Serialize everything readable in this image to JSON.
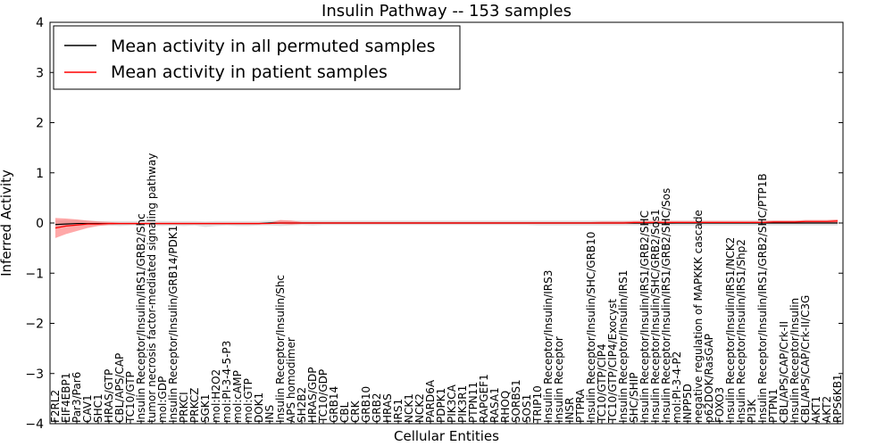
{
  "chart_data": {
    "type": "line",
    "title": "Insulin Pathway -- 153 samples",
    "xlabel": "Cellular Entities",
    "ylabel": "Inferred Activity",
    "ylim": [
      -4,
      4
    ],
    "yticks": [
      -4,
      -3,
      -2,
      -1,
      0,
      1,
      2,
      3,
      4
    ],
    "ytick_labels": [
      "−4",
      "−3",
      "−2",
      "−1",
      "0",
      "1",
      "2",
      "3",
      "4"
    ],
    "legend_position": "top-left",
    "categories": [
      "F2RL2",
      "EIF4EBP1",
      "Par3/Par6",
      "CAV1",
      "SHC1",
      "HRAS/GTP",
      "CBL/APS/CAP",
      "TC10/GTP",
      "Insulin Receptor/Insulin/IRS1/GRB2/Shc",
      "tumor necrosis factor-mediated signaling pathway",
      "mol:GDP",
      "Insulin Receptor/Insulin/GRB14/PDK1",
      "PRKCI",
      "PRKCZ",
      "SGK1",
      "mol:H2O2",
      "mol:PI-3-4-5-P3",
      "mol:cAMP",
      "mol:GTP",
      "DOK1",
      "INS",
      "Insulin Receptor/Insulin/Shc",
      "APS homodimer",
      "SH2B2",
      "HRAS/GDP",
      "TC10/GDP",
      "GRB14",
      "CBL",
      "CRK",
      "GRB10",
      "GRB2",
      "HRAS",
      "IRS1",
      "NCK1",
      "NCK2",
      "PARD6A",
      "PDPK1",
      "PIK3CA",
      "PIK3R1",
      "PTPN11",
      "RAPGEF1",
      "RASA1",
      "RHOQ",
      "SORBS1",
      "SOS1",
      "TRIP10",
      "Insulin Receptor/Insulin/IRS3",
      "Insulin Receptor",
      "INSR",
      "PTPRA",
      "Insulin Receptor/Insulin/SHC/GRB10",
      "TC10/GTP/CIP4",
      "TC10/GTP/CIP4/Exocyst",
      "Insulin Receptor/Insulin/IRS1",
      "SHC/SHIP",
      "Insulin Receptor/Insulin/IRS1/GRB2/SHC",
      "Insulin Receptor/Insulin/SHC/GRB2/Sos1",
      "Insulin Receptor/Insulin/IRS1/GRB2/SHC/Sos",
      "mol:PI-3-4-P2",
      "INPP5D",
      "negative regulation of MAPKKK cascade",
      "p62DOK/RasGAP",
      "FOXO3",
      "Insulin Receptor/Insulin/IRS1/NCK2",
      "Insulin Receptor/Insulin/IRS1/Shp2",
      "PI3K",
      "Insulin Receptor/Insulin/IRS1/GRB2/SHC/PTP1B",
      "PTPN1",
      "CBL/APS/CAP/Crk-II",
      "Insulin Receptor/Insulin",
      "CBL/APS/CAP/Crk-II/C3G",
      "AKT1",
      "AKT2",
      "RPS6KB1"
    ],
    "series": [
      {
        "name": "Mean activity in all permuted samples",
        "color": "#000000",
        "values": [
          -0.03,
          -0.02,
          -0.01,
          -0.01,
          -0.01,
          -0.01,
          -0.01,
          -0.01,
          -0.01,
          -0.01,
          -0.01,
          -0.01,
          -0.01,
          -0.01,
          -0.01,
          -0.01,
          -0.01,
          -0.01,
          -0.01,
          -0.01,
          0,
          0,
          0,
          0,
          0,
          0,
          0,
          0,
          0,
          0,
          0,
          0,
          0,
          0,
          0,
          0,
          0,
          0,
          0,
          0,
          0,
          0,
          0,
          0,
          0,
          0,
          0,
          0,
          0,
          0,
          0,
          0,
          0,
          0,
          0,
          0,
          0,
          0,
          0,
          0,
          0,
          0,
          0,
          0,
          0,
          0,
          0,
          0,
          0,
          0,
          0,
          0,
          0,
          0
        ],
        "band_low": [
          -0.08,
          -0.07,
          -0.06,
          -0.05,
          -0.05,
          -0.05,
          -0.06,
          -0.05,
          -0.04,
          -0.05,
          -0.06,
          -0.05,
          -0.06,
          -0.05,
          -0.08,
          -0.06,
          -0.05,
          -0.06,
          -0.06,
          -0.05,
          -0.05,
          -0.06,
          -0.05,
          -0.04,
          -0.05,
          -0.04,
          -0.04,
          -0.04,
          -0.04,
          -0.04,
          -0.04,
          -0.04,
          -0.04,
          -0.04,
          -0.04,
          -0.04,
          -0.04,
          -0.04,
          -0.04,
          -0.04,
          -0.04,
          -0.04,
          -0.04,
          -0.04,
          -0.04,
          -0.05,
          -0.05,
          -0.05,
          -0.05,
          -0.05,
          -0.05,
          -0.05,
          -0.05,
          -0.05,
          -0.05,
          -0.05,
          -0.05,
          -0.05,
          -0.05,
          -0.05,
          -0.05,
          -0.05,
          -0.05,
          -0.05,
          -0.05,
          -0.05,
          -0.05,
          -0.05,
          -0.05,
          -0.05,
          -0.05,
          -0.05,
          -0.05,
          -0.05
        ],
        "band_high": [
          0.05,
          0.06,
          0.06,
          0.05,
          0.04,
          0.04,
          0.04,
          0.04,
          0.04,
          0.04,
          0.04,
          0.04,
          0.04,
          0.04,
          0.03,
          0.04,
          0.04,
          0.04,
          0.04,
          0.04,
          0.05,
          0.05,
          0.05,
          0.05,
          0.05,
          0.05,
          0.05,
          0.05,
          0.05,
          0.05,
          0.05,
          0.05,
          0.05,
          0.05,
          0.05,
          0.05,
          0.05,
          0.05,
          0.05,
          0.05,
          0.05,
          0.05,
          0.05,
          0.05,
          0.05,
          0.05,
          0.05,
          0.05,
          0.05,
          0.05,
          0.05,
          0.05,
          0.05,
          0.05,
          0.05,
          0.05,
          0.05,
          0.05,
          0.05,
          0.05,
          0.05,
          0.05,
          0.05,
          0.05,
          0.05,
          0.05,
          0.05,
          0.05,
          0.05,
          0.05,
          0.05,
          0.05,
          0.05,
          0.05
        ]
      },
      {
        "name": "Mean activity in patient samples",
        "color": "#ff0000",
        "values": [
          -0.1,
          -0.06,
          -0.04,
          -0.02,
          -0.02,
          -0.01,
          -0.01,
          -0.01,
          -0.01,
          -0.01,
          -0.01,
          -0.01,
          -0.01,
          -0.01,
          -0.01,
          -0.01,
          -0.01,
          -0.01,
          -0.01,
          -0.01,
          -0.01,
          0,
          0,
          0,
          0,
          0,
          0,
          0,
          0,
          0,
          0,
          0,
          0,
          0,
          0,
          0,
          0,
          0,
          0,
          0,
          0,
          0,
          0,
          0,
          0,
          0,
          0,
          0,
          0,
          0,
          0,
          0,
          0,
          0,
          0.01,
          0.01,
          0.01,
          0.01,
          0.01,
          0.01,
          0.01,
          0.01,
          0.01,
          0.01,
          0.01,
          0.01,
          0.01,
          0.02,
          0.02,
          0.02,
          0.03,
          0.03,
          0.03,
          0.04
        ],
        "band_low": [
          -0.3,
          -0.22,
          -0.16,
          -0.1,
          -0.06,
          -0.04,
          -0.03,
          -0.03,
          -0.03,
          -0.03,
          -0.03,
          -0.03,
          -0.03,
          -0.03,
          -0.03,
          -0.03,
          -0.03,
          -0.03,
          -0.03,
          -0.03,
          -0.02,
          -0.02,
          -0.03,
          -0.02,
          -0.02,
          -0.02,
          -0.02,
          -0.02,
          -0.02,
          -0.02,
          -0.02,
          -0.02,
          -0.02,
          -0.02,
          -0.02,
          -0.02,
          -0.02,
          -0.02,
          -0.02,
          -0.02,
          -0.02,
          -0.02,
          -0.02,
          -0.02,
          -0.02,
          -0.02,
          -0.02,
          -0.02,
          -0.02,
          -0.02,
          -0.02,
          -0.02,
          -0.02,
          -0.02,
          -0.02,
          -0.02,
          -0.01,
          -0.02,
          -0.01,
          -0.01,
          -0.01,
          -0.01,
          -0.01,
          -0.01,
          -0.01,
          -0.01,
          0,
          0,
          0,
          0,
          0.01,
          0.01,
          0.01,
          0.01
        ],
        "band_high": [
          0.1,
          0.09,
          0.07,
          0.05,
          0.03,
          0.02,
          0.01,
          0.01,
          0.01,
          0.01,
          0.01,
          0.01,
          0.01,
          0.01,
          0.01,
          0.01,
          0.01,
          0.01,
          0.01,
          0.01,
          0.01,
          0.06,
          0.05,
          0.02,
          0.02,
          0.02,
          0.02,
          0.02,
          0.02,
          0.02,
          0.02,
          0.02,
          0.02,
          0.02,
          0.02,
          0.02,
          0.02,
          0.02,
          0.02,
          0.02,
          0.02,
          0.02,
          0.02,
          0.02,
          0.02,
          0.02,
          0.02,
          0.02,
          0.02,
          0.02,
          0.02,
          0.03,
          0.03,
          0.03,
          0.04,
          0.04,
          0.04,
          0.04,
          0.04,
          0.04,
          0.04,
          0.04,
          0.04,
          0.04,
          0.04,
          0.04,
          0.04,
          0.05,
          0.05,
          0.05,
          0.06,
          0.06,
          0.06,
          0.07
        ]
      }
    ]
  }
}
